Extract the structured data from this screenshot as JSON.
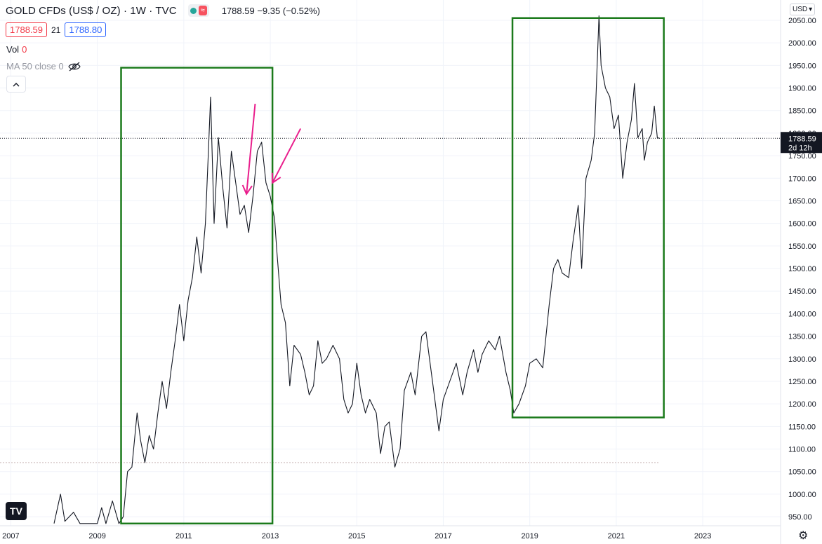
{
  "header": {
    "symbol": "GOLD CFDs (US$ / OZ) · 1W · TVC",
    "market_status_icon": "green-dot-icon",
    "approx_icon": "≈",
    "last": "1788.59",
    "change": "−9.35",
    "change_pct": "(−0.52%)",
    "bid": "1788.59",
    "spread": "21",
    "ask": "1788.80"
  },
  "indicators": {
    "vol_label": "Vol",
    "vol_value": "0",
    "ma_label": "MA 50 close 0",
    "ma_icon": "eye-off-icon"
  },
  "currency": "USD",
  "price_badge": {
    "price": "1788.59",
    "countdown": "2d 12h"
  },
  "colors": {
    "line": "#131722",
    "box": "#1b7a1b",
    "arrow": "#e91e8c",
    "badge_bg": "#131722",
    "grid": "#f0f3fa"
  },
  "chart_data": {
    "type": "line",
    "title": "GOLD CFDs (US$ / OZ) · 1W · TVC",
    "xlabel": "",
    "ylabel": "",
    "x_ticks": [
      "2007",
      "2009",
      "2011",
      "2013",
      "2015",
      "2017",
      "2019",
      "2021",
      "2023"
    ],
    "y_ticks": [
      "950.00",
      "1000.00",
      "1050.00",
      "1100.00",
      "1150.00",
      "1200.00",
      "1250.00",
      "1300.00",
      "1350.00",
      "1400.00",
      "1450.00",
      "1500.00",
      "1550.00",
      "1600.00",
      "1650.00",
      "1700.00",
      "1750.00",
      "1800.00",
      "1850.00",
      "1900.00",
      "1950.00",
      "2000.00",
      "2050.00"
    ],
    "x_range": [
      2006.75,
      2024.8
    ],
    "y_range": [
      930.0,
      2095.0
    ],
    "grid": true,
    "series": [
      {
        "values": [
          [
            2008.0,
            935
          ],
          [
            2008.15,
            1000
          ],
          [
            2008.25,
            940
          ],
          [
            2008.45,
            960
          ],
          [
            2008.6,
            935
          ],
          [
            2009.0,
            935
          ],
          [
            2009.1,
            970
          ],
          [
            2009.2,
            935
          ],
          [
            2009.35,
            985
          ],
          [
            2009.5,
            935
          ],
          [
            2009.6,
            950
          ],
          [
            2009.7,
            1050
          ],
          [
            2009.8,
            1060
          ],
          [
            2009.92,
            1180
          ],
          [
            2010.0,
            1120
          ],
          [
            2010.1,
            1070
          ],
          [
            2010.2,
            1130
          ],
          [
            2010.3,
            1100
          ],
          [
            2010.4,
            1180
          ],
          [
            2010.5,
            1250
          ],
          [
            2010.6,
            1190
          ],
          [
            2010.7,
            1270
          ],
          [
            2010.8,
            1340
          ],
          [
            2010.9,
            1420
          ],
          [
            2011.0,
            1340
          ],
          [
            2011.1,
            1430
          ],
          [
            2011.2,
            1480
          ],
          [
            2011.3,
            1570
          ],
          [
            2011.4,
            1490
          ],
          [
            2011.5,
            1600
          ],
          [
            2011.57,
            1760
          ],
          [
            2011.62,
            1880
          ],
          [
            2011.7,
            1600
          ],
          [
            2011.8,
            1790
          ],
          [
            2011.9,
            1680
          ],
          [
            2012.0,
            1590
          ],
          [
            2012.1,
            1760
          ],
          [
            2012.2,
            1690
          ],
          [
            2012.3,
            1620
          ],
          [
            2012.4,
            1640
          ],
          [
            2012.5,
            1580
          ],
          [
            2012.6,
            1660
          ],
          [
            2012.7,
            1760
          ],
          [
            2012.8,
            1780
          ],
          [
            2012.9,
            1690
          ],
          [
            2013.0,
            1660
          ],
          [
            2013.1,
            1610
          ],
          [
            2013.15,
            1540
          ],
          [
            2013.25,
            1420
          ],
          [
            2013.35,
            1380
          ],
          [
            2013.45,
            1240
          ],
          [
            2013.55,
            1330
          ],
          [
            2013.7,
            1310
          ],
          [
            2013.8,
            1270
          ],
          [
            2013.9,
            1220
          ],
          [
            2014.0,
            1240
          ],
          [
            2014.1,
            1340
          ],
          [
            2014.2,
            1290
          ],
          [
            2014.3,
            1300
          ],
          [
            2014.45,
            1330
          ],
          [
            2014.6,
            1300
          ],
          [
            2014.7,
            1210
          ],
          [
            2014.8,
            1180
          ],
          [
            2014.9,
            1200
          ],
          [
            2015.0,
            1290
          ],
          [
            2015.1,
            1220
          ],
          [
            2015.2,
            1180
          ],
          [
            2015.3,
            1210
          ],
          [
            2015.45,
            1180
          ],
          [
            2015.55,
            1090
          ],
          [
            2015.65,
            1150
          ],
          [
            2015.75,
            1160
          ],
          [
            2015.88,
            1060
          ],
          [
            2016.0,
            1100
          ],
          [
            2016.1,
            1230
          ],
          [
            2016.25,
            1270
          ],
          [
            2016.35,
            1220
          ],
          [
            2016.5,
            1350
          ],
          [
            2016.6,
            1360
          ],
          [
            2016.75,
            1250
          ],
          [
            2016.9,
            1140
          ],
          [
            2017.0,
            1210
          ],
          [
            2017.15,
            1250
          ],
          [
            2017.3,
            1290
          ],
          [
            2017.45,
            1220
          ],
          [
            2017.55,
            1270
          ],
          [
            2017.7,
            1320
          ],
          [
            2017.8,
            1270
          ],
          [
            2017.9,
            1310
          ],
          [
            2018.05,
            1340
          ],
          [
            2018.2,
            1320
          ],
          [
            2018.3,
            1350
          ],
          [
            2018.45,
            1270
          ],
          [
            2018.55,
            1230
          ],
          [
            2018.63,
            1180
          ],
          [
            2018.75,
            1200
          ],
          [
            2018.9,
            1240
          ],
          [
            2019.0,
            1290
          ],
          [
            2019.15,
            1300
          ],
          [
            2019.3,
            1280
          ],
          [
            2019.45,
            1420
          ],
          [
            2019.55,
            1500
          ],
          [
            2019.65,
            1520
          ],
          [
            2019.75,
            1490
          ],
          [
            2019.9,
            1480
          ],
          [
            2020.0,
            1560
          ],
          [
            2020.12,
            1640
          ],
          [
            2020.2,
            1500
          ],
          [
            2020.3,
            1700
          ],
          [
            2020.42,
            1740
          ],
          [
            2020.5,
            1800
          ],
          [
            2020.6,
            2060
          ],
          [
            2020.65,
            1950
          ],
          [
            2020.75,
            1900
          ],
          [
            2020.85,
            1880
          ],
          [
            2020.95,
            1810
          ],
          [
            2021.05,
            1840
          ],
          [
            2021.15,
            1700
          ],
          [
            2021.25,
            1780
          ],
          [
            2021.35,
            1830
          ],
          [
            2021.42,
            1910
          ],
          [
            2021.5,
            1790
          ],
          [
            2021.6,
            1810
          ],
          [
            2021.65,
            1740
          ],
          [
            2021.72,
            1780
          ],
          [
            2021.82,
            1800
          ],
          [
            2021.88,
            1860
          ],
          [
            2021.95,
            1790
          ],
          [
            2022.0,
            1788.59
          ]
        ]
      }
    ],
    "annotations": [
      {
        "type": "box",
        "x": [
          2009.55,
          2013.05
        ],
        "y": [
          935,
          1945
        ]
      },
      {
        "type": "box",
        "x": [
          2018.6,
          2022.1
        ],
        "y": [
          1170,
          2055
        ]
      },
      {
        "type": "arrow",
        "from": [
          2012.65,
          1865
        ],
        "to": [
          2012.45,
          1665
        ]
      },
      {
        "type": "arrow",
        "from": [
          2013.7,
          1810
        ],
        "to": [
          2013.05,
          1690
        ]
      }
    ],
    "reference_lines": [
      {
        "y": 1788.59,
        "style": "dotted"
      },
      {
        "y": 1070,
        "style": "dashed-faint"
      }
    ]
  }
}
